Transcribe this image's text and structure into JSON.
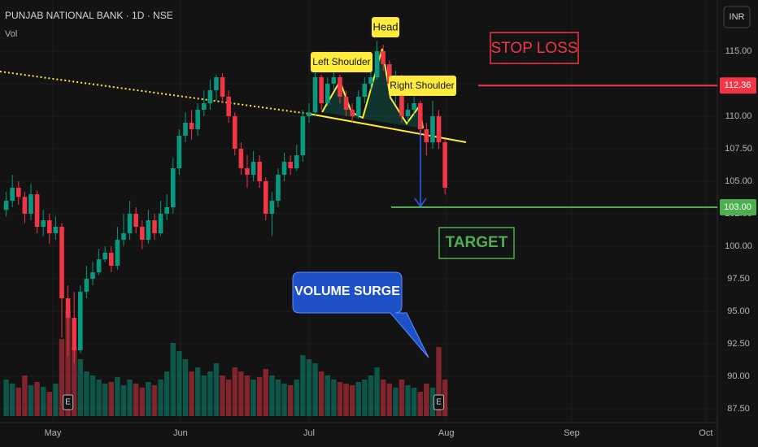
{
  "chart_data": {
    "type": "candlestick",
    "title": "PUNJAB NATIONAL BANK · 1D · NSE",
    "volume_label": "Vol",
    "currency": "INR",
    "up_color": "#089981",
    "down_color": "#f23645",
    "xlim": [
      0,
      115.8
    ],
    "xticks": [
      {
        "value": 8.55,
        "label": "May"
      },
      {
        "value": 29.2,
        "label": "Jun"
      },
      {
        "value": 50,
        "label": "Jul"
      },
      {
        "value": 72.2,
        "label": "Aug"
      },
      {
        "value": 92.5,
        "label": "Sep"
      },
      {
        "value": 114.2,
        "label": "Oct"
      }
    ],
    "ylim": [
      86.44,
      118.94
    ],
    "yticks": [
      {
        "value": 87.5,
        "label": "87.50"
      },
      {
        "value": 90,
        "label": "90.00"
      },
      {
        "value": 92.5,
        "label": "92.50"
      },
      {
        "value": 95,
        "label": "95.00"
      },
      {
        "value": 97.5,
        "label": "97.50"
      },
      {
        "value": 100,
        "label": "100.00"
      },
      {
        "value": 102.5,
        "label": "102.50"
      },
      {
        "value": 105,
        "label": "105.00"
      },
      {
        "value": 107.5,
        "label": "107.50"
      },
      {
        "value": 110,
        "label": "110.00"
      },
      {
        "value": 112.5,
        "label": "112.50"
      },
      {
        "value": 115,
        "label": "115.00"
      }
    ],
    "x": [
      1,
      2,
      3,
      4,
      5,
      6,
      7,
      8,
      9,
      10,
      11,
      12,
      13,
      14,
      15,
      16,
      17,
      18,
      19,
      20,
      21,
      22,
      23,
      24,
      25,
      26,
      27,
      28,
      29,
      30,
      31,
      32,
      33,
      34,
      35,
      36,
      37,
      38,
      39,
      40,
      41,
      42,
      43,
      44,
      45,
      46,
      47,
      48,
      49,
      50,
      51,
      52,
      53,
      54,
      55,
      56,
      57,
      58,
      59,
      60,
      61,
      62,
      63,
      64,
      65,
      66,
      67,
      68,
      69,
      70,
      71,
      72
    ],
    "open": [
      102.8,
      103.5,
      104.5,
      103.8,
      102.5,
      104,
      101.5,
      102,
      101,
      101.5,
      96,
      94.5,
      92,
      96.5,
      97.5,
      98,
      99,
      99.5,
      98.5,
      100.5,
      101,
      102.5,
      101.5,
      100.5,
      102,
      101,
      102.5,
      103,
      106,
      108.5,
      109.5,
      109,
      110.5,
      111,
      112,
      113,
      111.5,
      110,
      107.5,
      106,
      105.5,
      106.5,
      105,
      102.5,
      103.5,
      105.5,
      106.5,
      106,
      107,
      110,
      110.3,
      113,
      111,
      112.5,
      113,
      111.5,
      110.5,
      110,
      111.5,
      112.5,
      113,
      115,
      114,
      112.5,
      113,
      110,
      110.5,
      111,
      109,
      108,
      110,
      108
    ],
    "high": [
      104.2,
      105.5,
      105,
      104.2,
      104.8,
      104.3,
      102.8,
      102.5,
      102.3,
      101.8,
      97,
      96.5,
      97,
      98.5,
      98.8,
      99.8,
      100,
      100,
      101.5,
      102.5,
      103.5,
      103,
      102,
      102.8,
      102.5,
      103.5,
      104,
      106.8,
      109,
      110.3,
      110.5,
      111,
      112,
      112.8,
      113.2,
      113.3,
      112,
      110.3,
      108,
      107,
      107.3,
      107,
      105.3,
      104.2,
      106,
      107.2,
      107,
      107.8,
      110.5,
      111,
      113.5,
      113.2,
      113,
      113.5,
      113.2,
      112,
      111,
      112,
      113,
      113.8,
      115.8,
      115.5,
      114.3,
      113.5,
      113.2,
      111,
      111.5,
      111.2,
      109.5,
      111.2,
      110.5,
      108.2
    ],
    "low": [
      102.3,
      103,
      103.2,
      101.8,
      102,
      101,
      100.8,
      100.2,
      100.5,
      93,
      91.5,
      91,
      91.8,
      96,
      97,
      97.8,
      98.8,
      98,
      98.2,
      100,
      100.5,
      101,
      99.8,
      100.2,
      100.5,
      100.8,
      102,
      102.5,
      105.5,
      108,
      108.2,
      108.5,
      110,
      110.5,
      111.2,
      111,
      109.5,
      107,
      105.5,
      104.5,
      105,
      104.5,
      102,
      100.8,
      103,
      105,
      105.5,
      105.8,
      106.5,
      109.5,
      110,
      110.5,
      110.8,
      112,
      111,
      110,
      109.5,
      109.8,
      111,
      112,
      112.8,
      113.5,
      112,
      111,
      109.5,
      109.5,
      110,
      108.5,
      107,
      107.5,
      107.5,
      104
    ],
    "close": [
      103.5,
      104.5,
      103.8,
      102.5,
      104,
      101.5,
      102,
      101,
      101.5,
      96,
      94.5,
      92,
      96.5,
      97.5,
      98,
      99,
      99.5,
      98.5,
      100.5,
      101,
      102.5,
      101.5,
      100.5,
      102,
      101,
      102.5,
      103,
      106,
      108.5,
      109.5,
      109,
      110.5,
      111,
      112,
      113,
      111.5,
      110,
      107.5,
      106,
      105.5,
      106.5,
      105,
      102.5,
      103.5,
      105.5,
      106.5,
      106,
      107,
      110,
      110.3,
      113,
      111,
      112.5,
      113,
      111.5,
      110.5,
      110,
      111.5,
      112.5,
      113,
      115,
      114,
      112.5,
      113,
      110,
      110.5,
      111,
      109,
      108,
      110,
      108,
      104.5
    ],
    "volume": [
      45,
      40,
      35,
      50,
      38,
      42,
      36,
      30,
      40,
      95,
      130,
      85,
      70,
      55,
      50,
      45,
      40,
      42,
      48,
      38,
      45,
      40,
      35,
      42,
      38,
      45,
      55,
      90,
      80,
      70,
      55,
      60,
      50,
      55,
      65,
      50,
      45,
      60,
      55,
      50,
      45,
      48,
      58,
      50,
      45,
      40,
      38,
      45,
      75,
      70,
      65,
      55,
      50,
      45,
      42,
      40,
      38,
      42,
      45,
      50,
      60,
      45,
      40,
      35,
      45,
      38,
      35,
      30,
      40,
      35,
      85,
      45
    ],
    "volume_lim": [
      0,
      140
    ],
    "events": [
      {
        "x": 11,
        "label": "E"
      },
      {
        "x": 71,
        "label": "E"
      }
    ],
    "levels": {
      "values": [
        112.36,
        103
      ],
      "value_labels": [
        "112.36",
        "103.00"
      ],
      "colors": [
        "#f23645",
        "#4caf50"
      ]
    },
    "annotations": {
      "head": "Head",
      "left_shoulder": "Left Shoulder",
      "right_shoulder": "Right Shoulder",
      "stop_loss": "STOP LOSS",
      "target": "TARGET",
      "volume_surge": "VOLUME SURGE"
    }
  }
}
